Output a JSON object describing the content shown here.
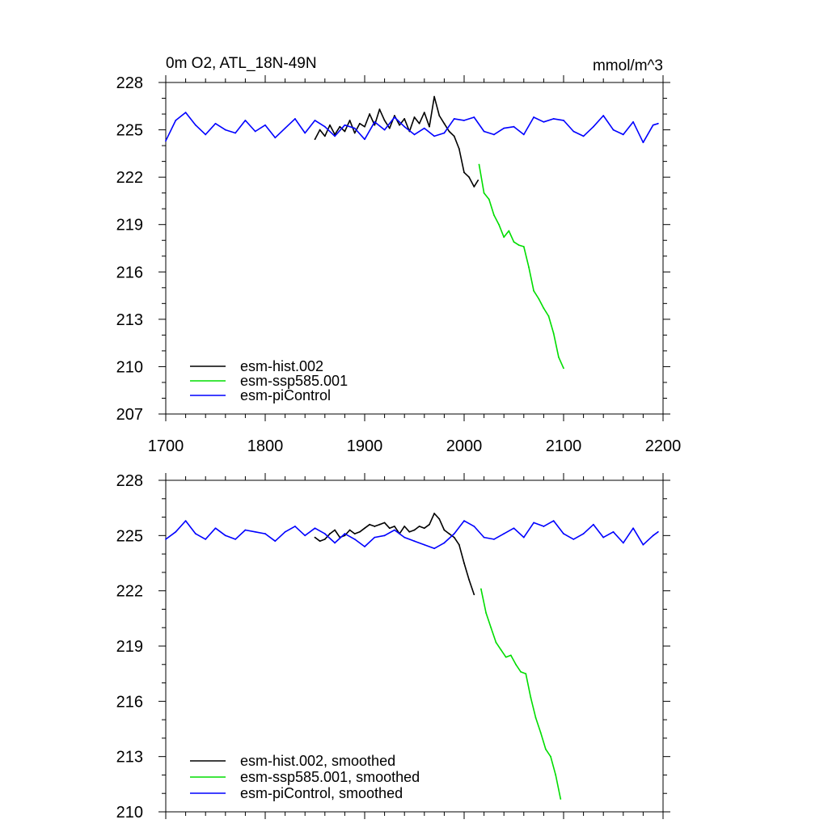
{
  "chart_data": [
    {
      "type": "line",
      "title": "0m O2, ATL_18N-49N",
      "units": "mmol/m^3",
      "xlim": [
        1700,
        2200
      ],
      "ylim": [
        207,
        228
      ],
      "xticks": [
        1700,
        1800,
        1900,
        2000,
        2100,
        2200
      ],
      "yticks": [
        207,
        210,
        213,
        216,
        219,
        222,
        225,
        228
      ],
      "legend": "bottom-left",
      "series": [
        {
          "name": "esm-hist.002",
          "color": "#000000",
          "x": [
            1850,
            1855,
            1860,
            1865,
            1870,
            1875,
            1880,
            1885,
            1890,
            1895,
            1900,
            1905,
            1910,
            1915,
            1920,
            1925,
            1930,
            1935,
            1940,
            1945,
            1950,
            1955,
            1960,
            1965,
            1970,
            1975,
            1980,
            1985,
            1990,
            1995,
            2000,
            2005,
            2010,
            2014
          ],
          "y": [
            224.4,
            225.0,
            224.6,
            225.3,
            224.7,
            225.2,
            224.9,
            225.6,
            224.8,
            225.4,
            225.2,
            226.0,
            225.3,
            226.3,
            225.6,
            225.1,
            225.9,
            225.3,
            225.7,
            224.9,
            225.8,
            225.4,
            226.1,
            225.2,
            227.1,
            225.9,
            225.4,
            224.9,
            224.6,
            223.8,
            222.3,
            222.0,
            221.4,
            221.8
          ]
        },
        {
          "name": "esm-ssp585.001",
          "color": "#00dd00",
          "x": [
            2015,
            2020,
            2025,
            2030,
            2035,
            2040,
            2045,
            2050,
            2055,
            2060,
            2065,
            2070,
            2075,
            2080,
            2085,
            2090,
            2095,
            2100
          ],
          "y": [
            222.8,
            221.0,
            220.6,
            219.6,
            219.0,
            218.2,
            218.6,
            217.9,
            217.7,
            217.6,
            216.3,
            214.8,
            214.3,
            213.7,
            213.2,
            212.1,
            210.6,
            209.9
          ]
        },
        {
          "name": "esm-piControl",
          "color": "#0000ff",
          "x": [
            1700,
            1710,
            1720,
            1730,
            1740,
            1750,
            1760,
            1770,
            1780,
            1790,
            1800,
            1810,
            1820,
            1830,
            1840,
            1850,
            1860,
            1870,
            1880,
            1890,
            1900,
            1910,
            1920,
            1930,
            1940,
            1950,
            1960,
            1970,
            1980,
            1990,
            2000,
            2010,
            2020,
            2030,
            2040,
            2050,
            2060,
            2070,
            2080,
            2090,
            2100,
            2110,
            2120,
            2130,
            2140,
            2150,
            2160,
            2170,
            2180,
            2190,
            2195
          ],
          "y": [
            224.3,
            225.6,
            226.1,
            225.3,
            224.7,
            225.4,
            225.0,
            224.8,
            225.6,
            224.9,
            225.3,
            224.5,
            225.1,
            225.7,
            224.8,
            225.6,
            225.2,
            224.6,
            225.3,
            225.1,
            224.4,
            225.5,
            225.0,
            225.8,
            225.2,
            224.7,
            225.1,
            224.6,
            224.8,
            225.7,
            225.6,
            225.8,
            224.9,
            224.7,
            225.1,
            225.2,
            224.7,
            225.8,
            225.5,
            225.7,
            225.6,
            224.9,
            224.6,
            225.2,
            225.9,
            225.0,
            224.7,
            225.5,
            224.2,
            225.3,
            225.4
          ]
        }
      ]
    },
    {
      "type": "line",
      "xlim": [
        1700,
        2200
      ],
      "ylim": [
        210,
        228
      ],
      "yticks": [
        210,
        213,
        216,
        219,
        222,
        225,
        228
      ],
      "legend": "bottom-left",
      "series": [
        {
          "name": "esm-hist.002, smoothed",
          "color": "#000000",
          "x": [
            1850,
            1855,
            1860,
            1865,
            1870,
            1875,
            1880,
            1885,
            1890,
            1895,
            1900,
            1905,
            1910,
            1915,
            1920,
            1925,
            1930,
            1935,
            1940,
            1945,
            1950,
            1955,
            1960,
            1965,
            1970,
            1975,
            1980,
            1985,
            1990,
            1995,
            2000,
            2005,
            2010
          ],
          "y": [
            224.9,
            224.7,
            224.8,
            225.1,
            225.3,
            224.9,
            225.0,
            225.3,
            225.1,
            225.2,
            225.4,
            225.6,
            225.5,
            225.6,
            225.7,
            225.4,
            225.5,
            225.1,
            225.5,
            225.2,
            225.3,
            225.5,
            225.4,
            225.6,
            226.2,
            225.9,
            225.3,
            225.1,
            224.9,
            224.5,
            223.5,
            222.6,
            221.8
          ]
        },
        {
          "name": "esm-ssp585.001, smoothed",
          "color": "#00dd00",
          "x": [
            2017,
            2022,
            2027,
            2032,
            2037,
            2042,
            2047,
            2052,
            2057,
            2062,
            2067,
            2072,
            2077,
            2082,
            2087,
            2092,
            2097
          ],
          "y": [
            222.1,
            220.8,
            220.0,
            219.2,
            218.8,
            218.4,
            218.5,
            218.0,
            217.6,
            217.5,
            216.2,
            215.1,
            214.3,
            213.4,
            213.0,
            212.0,
            210.7
          ]
        },
        {
          "name": "esm-piControl, smoothed",
          "color": "#0000ff",
          "x": [
            1700,
            1710,
            1720,
            1730,
            1740,
            1750,
            1760,
            1770,
            1780,
            1790,
            1800,
            1810,
            1820,
            1830,
            1840,
            1850,
            1860,
            1870,
            1880,
            1890,
            1900,
            1910,
            1920,
            1930,
            1940,
            1950,
            1960,
            1970,
            1980,
            1990,
            2000,
            2010,
            2020,
            2030,
            2040,
            2050,
            2060,
            2070,
            2080,
            2090,
            2100,
            2110,
            2120,
            2130,
            2140,
            2150,
            2160,
            2170,
            2180,
            2190,
            2195
          ],
          "y": [
            224.8,
            225.2,
            225.8,
            225.1,
            224.8,
            225.4,
            225.0,
            224.8,
            225.3,
            225.2,
            225.1,
            224.7,
            225.2,
            225.5,
            225.0,
            225.4,
            225.1,
            224.6,
            225.1,
            224.8,
            224.4,
            224.9,
            225.0,
            225.3,
            224.9,
            224.7,
            224.5,
            224.3,
            224.6,
            225.1,
            225.8,
            225.5,
            224.9,
            224.8,
            225.1,
            225.4,
            224.9,
            225.7,
            225.5,
            225.8,
            225.1,
            224.8,
            225.1,
            225.6,
            224.9,
            225.2,
            224.6,
            225.4,
            224.5,
            225.0,
            225.2
          ]
        }
      ]
    }
  ]
}
